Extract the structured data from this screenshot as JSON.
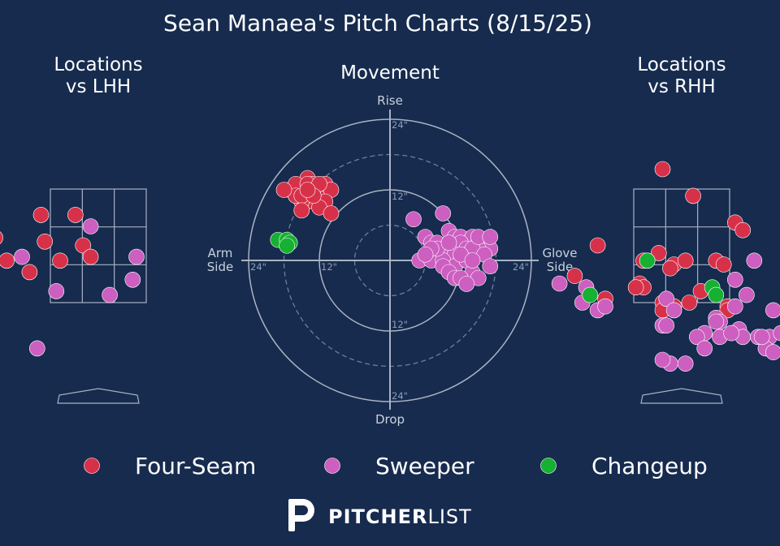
{
  "title": "Sean Manaea's Pitch Charts (8/15/25)",
  "brand": {
    "bold": "PITCHER",
    "light": "LIST"
  },
  "colors": {
    "background": "#162b4e",
    "Four-Seam": "#d7314a",
    "Sweeper": "#cc5fc0",
    "Changeup": "#16b033"
  },
  "chart_data": [
    {
      "type": "scatter",
      "title": "Locations vs LHH",
      "series": [
        {
          "name": "Four-Seam",
          "points": [
            [
              -3.0,
              2.2
            ],
            [
              -1.5,
              3.8
            ],
            [
              -0.6,
              3.8
            ],
            [
              -0.4,
              3.0
            ],
            [
              -3.6,
              3.6
            ],
            [
              -1.4,
              3.1
            ],
            [
              -4.0,
              3.3
            ],
            [
              -0.2,
              2.7
            ],
            [
              -2.7,
              3.2
            ],
            [
              -3.0,
              2.9
            ],
            [
              -1.8,
              2.3
            ],
            [
              -3.1,
              3.5
            ],
            [
              -1.0,
              2.6
            ],
            [
              -2.8,
              2.8
            ],
            [
              -2.4,
              2.6
            ]
          ]
        },
        {
          "name": "Sweeper",
          "points": [
            [
              -2.0,
              2.7
            ],
            [
              1.0,
              2.7
            ],
            [
              -0.2,
              3.5
            ],
            [
              0.3,
              1.7
            ],
            [
              -1.1,
              1.8
            ],
            [
              0.9,
              2.1
            ],
            [
              -1.6,
              0.3
            ]
          ]
        }
      ]
    },
    {
      "type": "scatter",
      "title": "Movement",
      "xlabel_left": "Arm Side",
      "xlabel_right": "Glove Side",
      "ylabel_top": "Rise",
      "ylabel_bottom": "Drop",
      "ring_labels": [
        "12\"",
        "24\""
      ],
      "series": [
        {
          "name": "Four-Seam",
          "points": [
            [
              -16,
              11
            ],
            [
              -14,
              14
            ],
            [
              -15,
              12
            ],
            [
              -13,
              11
            ],
            [
              -12,
              12
            ],
            [
              -17,
              12
            ],
            [
              -14,
              10
            ],
            [
              -13,
              13
            ],
            [
              -12,
              11
            ],
            [
              -11,
              13
            ],
            [
              -10,
              12
            ],
            [
              -16,
              13
            ],
            [
              -15,
              10
            ],
            [
              -13,
              12
            ],
            [
              -14,
              13
            ],
            [
              -12,
              13
            ],
            [
              -16,
              11
            ],
            [
              -15,
              11
            ],
            [
              -11,
              10
            ],
            [
              -18,
              12
            ],
            [
              -15,
              8.5
            ],
            [
              -12,
              9
            ],
            [
              -10,
              8
            ],
            [
              -13,
              11
            ],
            [
              -14,
              12
            ]
          ]
        },
        {
          "name": "Sweeper",
          "points": [
            [
              4,
              7
            ],
            [
              9,
              8
            ],
            [
              10,
              5
            ],
            [
              11,
              4
            ],
            [
              12,
              4
            ],
            [
              13,
              3
            ],
            [
              14,
              4
            ],
            [
              15,
              3
            ],
            [
              16,
              2
            ],
            [
              17,
              2
            ],
            [
              10,
              3
            ],
            [
              11,
              2
            ],
            [
              12,
              3
            ],
            [
              13,
              2
            ],
            [
              15,
              2
            ],
            [
              6,
              4
            ],
            [
              7,
              3
            ],
            [
              8,
              3
            ],
            [
              9,
              2
            ],
            [
              10,
              1
            ],
            [
              11,
              1
            ],
            [
              12,
              0
            ],
            [
              13,
              1
            ],
            [
              14,
              2
            ],
            [
              15,
              4
            ],
            [
              17,
              4
            ],
            [
              5,
              0
            ],
            [
              7,
              0
            ],
            [
              9,
              0
            ],
            [
              11,
              -1
            ],
            [
              13,
              0
            ],
            [
              14,
              -2
            ],
            [
              15,
              -3
            ],
            [
              16,
              1
            ],
            [
              17,
              -1
            ],
            [
              9,
              -1
            ],
            [
              10,
              -2
            ],
            [
              11,
              -3
            ],
            [
              12,
              -3
            ],
            [
              13,
              -4
            ],
            [
              8,
              2
            ],
            [
              7,
              2
            ],
            [
              6,
              1
            ],
            [
              10,
              3
            ],
            [
              12,
              1
            ],
            [
              14,
              0
            ]
          ]
        },
        {
          "name": "Changeup",
          "points": [
            [
              -19,
              3.5
            ],
            [
              -17.5,
              3.5
            ],
            [
              -17,
              3
            ],
            [
              -17.5,
              2.5
            ]
          ]
        }
      ]
    },
    {
      "type": "scatter",
      "title": "Locations vs RHH",
      "series": [
        {
          "name": "Four-Seam",
          "points": [
            [
              -0.5,
              5.0
            ],
            [
              0.3,
              4.3
            ],
            [
              1.4,
              3.6
            ],
            [
              -2.2,
              3.0
            ],
            [
              -0.6,
              2.8
            ],
            [
              -0.2,
              2.5
            ],
            [
              0.1,
              2.6
            ],
            [
              -0.3,
              2.4
            ],
            [
              -0.9,
              2.6
            ],
            [
              -1.0,
              2.6
            ],
            [
              0.9,
              2.6
            ],
            [
              1.1,
              2.5
            ],
            [
              -1.1,
              2.0
            ],
            [
              -1.0,
              1.9
            ],
            [
              0.5,
              1.8
            ],
            [
              -2.8,
              2.2
            ],
            [
              -2.0,
              1.6
            ],
            [
              -0.2,
              1.4
            ],
            [
              -0.5,
              1.5
            ],
            [
              0.2,
              1.5
            ],
            [
              1.2,
              1.4
            ],
            [
              1.6,
              3.4
            ],
            [
              1.2,
              1.3
            ],
            [
              -1.2,
              1.9
            ],
            [
              -0.5,
              1.3
            ]
          ]
        },
        {
          "name": "Sweeper",
          "points": [
            [
              1.9,
              2.6
            ],
            [
              1.4,
              2.1
            ],
            [
              -2.6,
              1.5
            ],
            [
              -3.2,
              2.0
            ],
            [
              -2.2,
              1.3
            ],
            [
              -2.0,
              1.4
            ],
            [
              -0.4,
              1.6
            ],
            [
              1.7,
              1.7
            ],
            [
              2.4,
              1.3
            ],
            [
              -0.5,
              0.9
            ],
            [
              -0.2,
              1.3
            ],
            [
              0.9,
              1.1
            ],
            [
              1.0,
              1.0
            ],
            [
              1.5,
              0.8
            ],
            [
              1.0,
              0.6
            ],
            [
              1.6,
              0.6
            ],
            [
              2.0,
              0.6
            ],
            [
              2.3,
              0.6
            ],
            [
              2.6,
              0.7
            ],
            [
              3.0,
              0.8
            ],
            [
              1.3,
              0.7
            ],
            [
              0.6,
              0.7
            ],
            [
              2.2,
              0.3
            ],
            [
              0.4,
              0.6
            ],
            [
              0.9,
              1.0
            ],
            [
              2.1,
              0.6
            ],
            [
              -0.3,
              -0.1
            ],
            [
              0.1,
              -0.1
            ],
            [
              -0.5,
              0.0
            ],
            [
              0.6,
              0.3
            ],
            [
              1.4,
              1.4
            ],
            [
              2.4,
              0.2
            ],
            [
              -2.5,
              1.9
            ],
            [
              3.4,
              0.0
            ],
            [
              -0.4,
              0.9
            ]
          ]
        },
        {
          "name": "Changeup",
          "points": [
            [
              0.8,
              1.9
            ],
            [
              -0.9,
              2.6
            ],
            [
              0.9,
              1.7
            ],
            [
              -2.4,
              1.7
            ]
          ]
        }
      ]
    }
  ],
  "legend": [
    {
      "label": "Four-Seam",
      "color": "#d7314a"
    },
    {
      "label": "Sweeper",
      "color": "#cc5fc0"
    },
    {
      "label": "Changeup",
      "color": "#16b033"
    }
  ]
}
